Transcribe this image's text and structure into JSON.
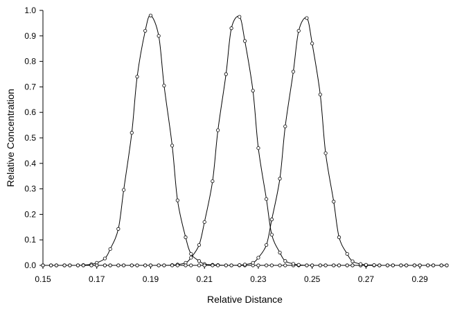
{
  "chart_data": {
    "type": "scatter",
    "title": "",
    "xlabel": "Relative Distance",
    "ylabel": "Relative Concentration",
    "xlim": [
      0.15,
      0.3
    ],
    "ylim": [
      0.0,
      1.0
    ],
    "x_ticks": [
      "0.15",
      "0.17",
      "0.19",
      "0.21",
      "0.23",
      "0.25",
      "0.27",
      "0.29"
    ],
    "y_ticks": [
      "0.0",
      "0.1",
      "0.2",
      "0.3",
      "0.4",
      "0.5",
      "0.6",
      "0.7",
      "0.8",
      "0.9",
      "1.0"
    ],
    "grid": false,
    "legend": "none",
    "line_style": "smooth line with open circle markers",
    "series": [
      {
        "x": [
          0.15,
          0.153,
          0.155,
          0.158,
          0.16,
          0.163,
          0.165,
          0.168,
          0.17,
          0.173,
          0.175,
          0.178,
          0.18,
          0.183,
          0.185,
          0.188,
          0.19,
          0.193,
          0.195,
          0.198,
          0.2,
          0.203,
          0.205,
          0.208,
          0.21,
          0.213,
          0.215,
          0.218,
          0.22,
          0.223,
          0.225,
          0.228,
          0.23,
          0.233,
          0.235,
          0.238,
          0.24,
          0.243,
          0.245,
          0.248,
          0.25,
          0.253,
          0.255,
          0.258,
          0.26,
          0.263,
          0.265,
          0.268,
          0.27,
          0.273,
          0.275,
          0.278,
          0.28,
          0.283,
          0.285,
          0.288,
          0.29,
          0.293,
          0.295,
          0.298,
          0.3
        ],
        "y": [
          0.0,
          0.0,
          0.0,
          0.0,
          0.0,
          0.0,
          0.001,
          0.004,
          0.01,
          0.027,
          0.064,
          0.143,
          0.296,
          0.52,
          0.74,
          0.92,
          0.98,
          0.9,
          0.705,
          0.47,
          0.255,
          0.11,
          0.045,
          0.017,
          0.005,
          0.002,
          0.001,
          0.0,
          0.0,
          0.0,
          0.0,
          0.0,
          0.0,
          0.0,
          0.0,
          0.0,
          0.0,
          0.0,
          0.0,
          0.0,
          0.0,
          0.0,
          0.0,
          0.0,
          0.0,
          0.0,
          0.0,
          0.0,
          0.0,
          0.0,
          0.0,
          0.0,
          0.0,
          0.0,
          0.0,
          0.0,
          0.0,
          0.0,
          0.0,
          0.0,
          0.0
        ]
      },
      {
        "x": [
          0.15,
          0.153,
          0.155,
          0.158,
          0.16,
          0.163,
          0.165,
          0.168,
          0.17,
          0.173,
          0.175,
          0.178,
          0.18,
          0.183,
          0.185,
          0.188,
          0.19,
          0.193,
          0.195,
          0.198,
          0.2,
          0.203,
          0.205,
          0.208,
          0.21,
          0.213,
          0.215,
          0.218,
          0.22,
          0.223,
          0.225,
          0.228,
          0.23,
          0.233,
          0.235,
          0.238,
          0.24,
          0.243,
          0.245,
          0.248,
          0.25,
          0.253,
          0.255,
          0.258,
          0.26,
          0.263,
          0.265,
          0.268,
          0.27,
          0.273,
          0.275,
          0.278,
          0.28,
          0.283,
          0.285,
          0.288,
          0.29,
          0.293,
          0.295,
          0.298,
          0.3
        ],
        "y": [
          0.0,
          0.0,
          0.0,
          0.0,
          0.0,
          0.0,
          0.0,
          0.0,
          0.0,
          0.0,
          0.0,
          0.0,
          0.0,
          0.0,
          0.0,
          0.0,
          0.0,
          0.0,
          0.0,
          0.001,
          0.003,
          0.01,
          0.03,
          0.08,
          0.17,
          0.33,
          0.53,
          0.75,
          0.93,
          0.975,
          0.88,
          0.685,
          0.46,
          0.26,
          0.12,
          0.05,
          0.017,
          0.006,
          0.002,
          0.0,
          0.0,
          0.0,
          0.0,
          0.0,
          0.0,
          0.0,
          0.0,
          0.0,
          0.0,
          0.0,
          0.0,
          0.0,
          0.0,
          0.0,
          0.0,
          0.0,
          0.0,
          0.0,
          0.0,
          0.0,
          0.0
        ]
      },
      {
        "x": [
          0.15,
          0.153,
          0.155,
          0.158,
          0.16,
          0.163,
          0.165,
          0.168,
          0.17,
          0.173,
          0.175,
          0.178,
          0.18,
          0.183,
          0.185,
          0.188,
          0.19,
          0.193,
          0.195,
          0.198,
          0.2,
          0.203,
          0.205,
          0.208,
          0.21,
          0.213,
          0.215,
          0.218,
          0.22,
          0.223,
          0.225,
          0.228,
          0.23,
          0.233,
          0.235,
          0.238,
          0.24,
          0.243,
          0.245,
          0.248,
          0.25,
          0.253,
          0.255,
          0.258,
          0.26,
          0.263,
          0.265,
          0.268,
          0.27,
          0.273,
          0.275,
          0.278,
          0.28,
          0.283,
          0.285,
          0.288,
          0.29,
          0.293,
          0.295,
          0.298,
          0.3
        ],
        "y": [
          0.0,
          0.0,
          0.0,
          0.0,
          0.0,
          0.0,
          0.0,
          0.0,
          0.0,
          0.0,
          0.0,
          0.0,
          0.0,
          0.0,
          0.0,
          0.0,
          0.0,
          0.0,
          0.0,
          0.0,
          0.0,
          0.0,
          0.0,
          0.0,
          0.0,
          0.0,
          0.0,
          0.0,
          0.0,
          0.001,
          0.003,
          0.01,
          0.03,
          0.08,
          0.18,
          0.34,
          0.545,
          0.76,
          0.92,
          0.97,
          0.87,
          0.67,
          0.44,
          0.25,
          0.11,
          0.045,
          0.016,
          0.005,
          0.002,
          0.001,
          0.0,
          0.0,
          0.0,
          0.0,
          0.0,
          0.0,
          0.0,
          0.0,
          0.0,
          0.0,
          0.0
        ]
      }
    ]
  }
}
